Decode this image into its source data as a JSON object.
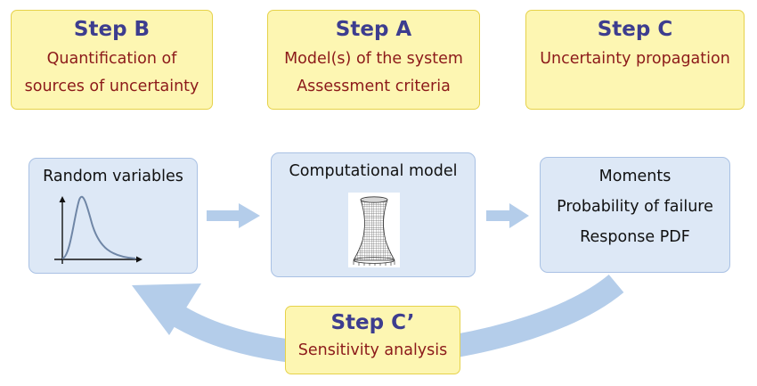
{
  "steps": {
    "b": {
      "title": "Step B",
      "lines": [
        "Quantification of",
        "sources of uncertainty"
      ]
    },
    "a": {
      "title": "Step A",
      "lines": [
        "Model(s) of the system",
        "Assessment criteria"
      ]
    },
    "c": {
      "title": "Step C",
      "lines": [
        "Uncertainty propagation"
      ]
    },
    "c_prime": {
      "title": "Step C’",
      "lines": [
        "Sensitivity analysis"
      ]
    }
  },
  "flow": {
    "inputs": {
      "title": "Random variables"
    },
    "model": {
      "title": "Computational model"
    },
    "outputs": {
      "lines": [
        "Moments",
        "Probability of failure",
        "Response PDF"
      ]
    }
  },
  "colors": {
    "step_fill": "#fdf6b2",
    "step_border": "#e6d24a",
    "step_title": "#3d3d8f",
    "step_text": "#8c1a1a",
    "flow_fill": "#dde8f6",
    "flow_border": "#a9c1e4",
    "arrow": "#b4cdea",
    "pdf_curve": "#6f86a6"
  },
  "icons": {
    "pdf": "probability-density-plot-icon",
    "mesh": "cooling-tower-mesh-icon",
    "arrows": "flow-arrow-icon"
  }
}
